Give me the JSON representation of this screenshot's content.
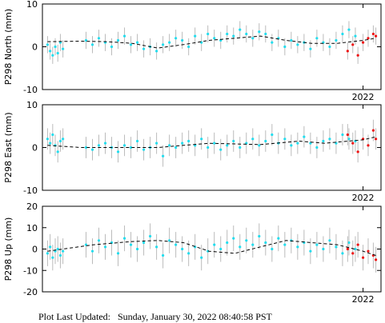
{
  "chart_data": [
    {
      "type": "scatter",
      "ylabel": "P298 North (mm)",
      "ylim": [
        -10,
        10
      ],
      "yticks": [
        -10,
        0,
        10
      ],
      "xlim": [
        2020.75,
        2022.07
      ],
      "xticks": [
        2022
      ],
      "series": [
        {
          "color": "#22ddee",
          "error": 2,
          "x": [
            2020.77,
            2020.78,
            2020.79,
            2020.8,
            2020.81,
            2020.82,
            2020.83,
            2020.92,
            2020.945,
            2020.97,
            2020.995,
            2021.02,
            2021.045,
            2021.07,
            2021.095,
            2021.12,
            2021.145,
            2021.17,
            2021.195,
            2021.22,
            2021.245,
            2021.27,
            2021.295,
            2021.32,
            2021.345,
            2021.37,
            2021.395,
            2021.42,
            2021.445,
            2021.47,
            2021.495,
            2021.52,
            2021.545,
            2021.57,
            2021.595,
            2021.62,
            2021.645,
            2021.67,
            2021.695,
            2021.72,
            2021.745,
            2021.77,
            2021.795,
            2021.82,
            2021.845,
            2021.87,
            2021.895,
            2021.92,
            2021.945,
            2021.97
          ],
          "values": [
            0.5,
            -1,
            -2,
            0,
            -1.5,
            1,
            -0.5,
            1.5,
            0.5,
            2,
            1,
            0,
            1.5,
            2.5,
            0.5,
            1,
            -0.5,
            0,
            -1,
            0.5,
            1,
            2,
            1.5,
            0,
            2.5,
            1,
            3,
            2,
            1.5,
            3,
            2.5,
            4,
            3,
            2,
            3.5,
            3,
            1,
            2,
            0,
            1.5,
            0.5,
            1,
            -0.5,
            2,
            1,
            0,
            1.5,
            3,
            4,
            2.5
          ]
        },
        {
          "color": "#ee1111",
          "error": 2,
          "x": [
            2021.94,
            2021.96,
            2021.98,
            2022.0,
            2022.02,
            2022.04,
            2022.05
          ],
          "values": [
            -1,
            0.5,
            -2,
            1,
            2,
            3,
            2.5
          ]
        },
        {
          "color": "#000000",
          "line": "dashed",
          "x": [
            2020.77,
            2020.9,
            2021.0,
            2021.1,
            2021.2,
            2021.3,
            2021.4,
            2021.5,
            2021.6,
            2021.7,
            2021.8,
            2021.9,
            2022.0,
            2022.05
          ],
          "values": [
            1.2,
            1.3,
            1.2,
            0.8,
            -0.3,
            0.5,
            1.5,
            2,
            2.5,
            1.5,
            0.8,
            0.8,
            1.5,
            2
          ]
        }
      ]
    },
    {
      "type": "scatter",
      "ylabel": "P298 East (mm)",
      "ylim": [
        -10,
        10
      ],
      "yticks": [
        -10,
        0,
        10
      ],
      "xlim": [
        2020.75,
        2022.07
      ],
      "xticks": [
        2022
      ],
      "series": [
        {
          "color": "#22ddee",
          "error": 2.5,
          "x": [
            2020.77,
            2020.78,
            2020.79,
            2020.8,
            2020.81,
            2020.82,
            2020.83,
            2020.92,
            2020.945,
            2020.97,
            2020.995,
            2021.02,
            2021.045,
            2021.07,
            2021.095,
            2021.12,
            2021.145,
            2021.17,
            2021.195,
            2021.22,
            2021.245,
            2021.27,
            2021.295,
            2021.32,
            2021.345,
            2021.37,
            2021.395,
            2021.42,
            2021.445,
            2021.47,
            2021.495,
            2021.52,
            2021.545,
            2021.57,
            2021.595,
            2021.62,
            2021.645,
            2021.67,
            2021.695,
            2021.72,
            2021.745,
            2021.77,
            2021.795,
            2021.82,
            2021.845,
            2021.87,
            2021.895,
            2021.92,
            2021.945,
            2021.97
          ],
          "values": [
            2,
            1,
            3,
            0.5,
            -1,
            1.5,
            2,
            0,
            -0.5,
            0.5,
            1,
            0,
            -1,
            0.5,
            0,
            1.5,
            -0.5,
            0,
            1,
            -2,
            0.5,
            0,
            1,
            1.5,
            0.5,
            2,
            0,
            1,
            -0.5,
            0.5,
            1.5,
            0,
            1,
            2,
            0.5,
            1.5,
            3,
            1,
            2,
            0.5,
            1,
            2.5,
            1,
            0,
            1.5,
            2,
            1,
            3,
            2,
            1.5
          ]
        },
        {
          "color": "#ee1111",
          "error": 2.5,
          "x": [
            2021.94,
            2021.96,
            2021.98,
            2022.0,
            2022.02,
            2022.04,
            2022.05
          ],
          "values": [
            3,
            1,
            -1,
            2,
            0.5,
            4,
            2
          ]
        },
        {
          "color": "#000000",
          "line": "dashed",
          "x": [
            2020.77,
            2020.9,
            2021.0,
            2021.1,
            2021.2,
            2021.3,
            2021.4,
            2021.6,
            2021.75,
            2021.85,
            2022.0,
            2022.05
          ],
          "values": [
            0.5,
            0,
            0,
            0,
            0,
            0.5,
            1,
            0.7,
            1.5,
            1,
            1.8,
            2.5
          ]
        }
      ]
    },
    {
      "type": "scatter",
      "ylabel": "P298 Up (mm)",
      "ylim": [
        -20,
        20
      ],
      "yticks": [
        -20,
        -10,
        0,
        10,
        20
      ],
      "xlim": [
        2020.75,
        2022.07
      ],
      "xticks": [
        2022
      ],
      "series": [
        {
          "color": "#22ddee",
          "error": 6,
          "x": [
            2020.77,
            2020.78,
            2020.79,
            2020.8,
            2020.81,
            2020.82,
            2020.83,
            2020.92,
            2020.945,
            2020.97,
            2020.995,
            2021.02,
            2021.045,
            2021.07,
            2021.095,
            2021.12,
            2021.145,
            2021.17,
            2021.195,
            2021.22,
            2021.245,
            2021.27,
            2021.295,
            2021.32,
            2021.345,
            2021.37,
            2021.395,
            2021.42,
            2021.445,
            2021.47,
            2021.495,
            2021.52,
            2021.545,
            2021.57,
            2021.595,
            2021.62,
            2021.645,
            2021.67,
            2021.695,
            2021.72,
            2021.745,
            2021.77,
            2021.795,
            2021.82,
            2021.845,
            2021.87,
            2021.895,
            2021.92,
            2021.945,
            2021.97
          ],
          "values": [
            -2,
            1,
            -4,
            -1,
            0,
            -3,
            -1,
            2,
            -1,
            4,
            1,
            3,
            -2,
            5,
            2,
            0,
            3,
            6,
            1,
            -3,
            4,
            2,
            0,
            -2,
            1,
            -4,
            -1,
            2,
            0,
            3,
            5,
            1,
            4,
            2,
            6,
            3,
            0,
            5,
            2,
            4,
            1,
            3,
            -1,
            2,
            0,
            4,
            1,
            -2,
            3,
            0
          ]
        },
        {
          "color": "#ee1111",
          "error": 6,
          "x": [
            2021.94,
            2021.96,
            2021.98,
            2022.0,
            2022.02,
            2022.04,
            2022.05
          ],
          "values": [
            0,
            -2,
            2,
            -4,
            -1,
            -3,
            -5
          ]
        },
        {
          "color": "#000000",
          "line": "dashed",
          "x": [
            2020.77,
            2020.95,
            2021.1,
            2021.2,
            2021.3,
            2021.4,
            2021.5,
            2021.6,
            2021.7,
            2021.8,
            2021.9,
            2022.0,
            2022.05
          ],
          "values": [
            -1,
            2,
            3.5,
            4,
            3,
            -1,
            -2,
            1,
            4,
            3,
            2,
            -1,
            -3
          ]
        }
      ]
    }
  ],
  "footer": "Plot Last Updated:   Sunday, January 30, 2022 08:40:58 PST"
}
